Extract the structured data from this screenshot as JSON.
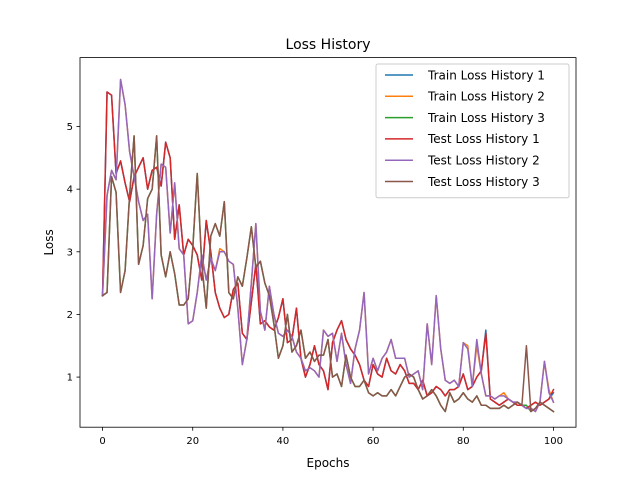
{
  "chart_data": {
    "type": "line",
    "title": "Loss History",
    "xlabel": "Epochs",
    "ylabel": "Loss",
    "xlim": [
      -5,
      105
    ],
    "ylim": [
      0.2,
      6.1
    ],
    "xticks": [
      0,
      20,
      40,
      60,
      80,
      100
    ],
    "yticks": [
      1,
      2,
      3,
      4,
      5
    ],
    "grid": false,
    "legend_position": "top-right",
    "x": [
      0,
      1,
      2,
      3,
      4,
      5,
      6,
      7,
      8,
      9,
      10,
      11,
      12,
      13,
      14,
      15,
      16,
      17,
      18,
      19,
      20,
      21,
      22,
      23,
      24,
      25,
      26,
      27,
      28,
      29,
      30,
      31,
      32,
      33,
      34,
      35,
      36,
      37,
      38,
      39,
      40,
      41,
      42,
      43,
      44,
      45,
      46,
      47,
      48,
      49,
      50,
      51,
      52,
      53,
      54,
      55,
      56,
      57,
      58,
      59,
      60,
      61,
      62,
      63,
      64,
      65,
      66,
      67,
      68,
      69,
      70,
      71,
      72,
      73,
      74,
      75,
      76,
      77,
      78,
      79,
      80,
      81,
      82,
      83,
      84,
      85,
      86,
      87,
      88,
      89,
      90,
      91,
      92,
      93,
      94,
      95,
      96,
      97,
      98,
      99,
      100
    ],
    "series": [
      {
        "name": "Train Loss History 1",
        "color": "#1f77b4",
        "values": [
          2.3,
          5.55,
          5.5,
          4.25,
          4.45,
          4.1,
          3.8,
          4.2,
          4.35,
          4.5,
          4.0,
          4.3,
          4.35,
          4.05,
          4.75,
          4.5,
          3.2,
          3.75,
          2.95,
          3.2,
          3.1,
          2.95,
          2.55,
          3.5,
          3.0,
          2.35,
          2.1,
          1.95,
          2.0,
          2.4,
          2.5,
          1.7,
          1.6,
          2.2,
          2.8,
          1.85,
          1.9,
          1.8,
          1.75,
          1.95,
          2.25,
          1.55,
          1.6,
          2.1,
          1.3,
          1.0,
          1.2,
          1.5,
          1.2,
          1.1,
          0.8,
          1.55,
          1.75,
          1.9,
          1.6,
          1.45,
          1.35,
          1.2,
          0.95,
          0.85,
          1.2,
          1.05,
          1.0,
          1.3,
          1.1,
          1.05,
          1.2,
          1.1,
          0.9,
          0.9,
          0.8,
          0.95,
          0.7,
          0.75,
          0.85,
          0.8,
          0.7,
          0.8,
          0.8,
          0.85,
          1.05,
          0.8,
          0.85,
          1.0,
          1.1,
          1.75,
          0.65,
          0.6,
          0.55,
          0.6,
          0.65,
          0.6,
          0.55,
          0.55,
          0.5,
          0.55,
          0.6,
          0.55,
          0.6,
          0.65,
          0.75
        ]
      },
      {
        "name": "Train Loss History 2",
        "color": "#ff7f0e",
        "values": [
          2.3,
          3.9,
          4.3,
          4.15,
          5.75,
          5.35,
          4.6,
          4.2,
          3.8,
          3.5,
          3.6,
          2.25,
          3.6,
          4.4,
          4.35,
          3.3,
          4.1,
          3.05,
          2.95,
          1.85,
          1.9,
          2.35,
          2.95,
          2.55,
          2.9,
          2.7,
          3.05,
          3.0,
          2.85,
          2.8,
          2.1,
          1.2,
          1.6,
          2.5,
          3.45,
          2.05,
          1.75,
          2.45,
          2.0,
          1.7,
          1.65,
          1.75,
          1.65,
          1.4,
          1.3,
          1.1,
          1.15,
          1.1,
          1.0,
          1.75,
          1.65,
          1.7,
          1.25,
          1.7,
          1.2,
          0.9,
          1.45,
          1.75,
          2.35,
          1.05,
          1.3,
          1.1,
          1.3,
          1.4,
          1.6,
          1.3,
          1.3,
          1.3,
          1.0,
          1.05,
          1.1,
          0.8,
          1.85,
          1.2,
          2.3,
          1.45,
          0.95,
          0.9,
          0.95,
          0.85,
          1.55,
          1.5,
          0.85,
          1.5,
          1.05,
          0.7,
          0.7,
          0.65,
          0.7,
          0.75,
          0.65,
          0.6,
          0.6,
          0.55,
          0.5,
          0.5,
          0.45,
          0.6,
          1.25,
          0.8,
          0.6
        ]
      },
      {
        "name": "Train Loss History 3",
        "color": "#2ca02c",
        "values": [
          2.3,
          2.35,
          4.2,
          3.95,
          2.35,
          2.7,
          3.9,
          4.85,
          2.8,
          3.1,
          3.85,
          4.0,
          4.85,
          2.95,
          2.6,
          3.0,
          2.65,
          2.15,
          2.15,
          2.25,
          3.05,
          4.25,
          2.8,
          2.1,
          3.25,
          3.45,
          3.25,
          3.8,
          2.35,
          2.25,
          2.6,
          2.45,
          2.9,
          3.4,
          2.75,
          2.85,
          2.5,
          2.3,
          1.85,
          1.3,
          1.5,
          2.0,
          1.4,
          1.5,
          1.75,
          1.3,
          1.4,
          1.25,
          1.35,
          1.35,
          1.6,
          1.0,
          1.05,
          0.85,
          1.35,
          1.0,
          0.85,
          0.85,
          0.95,
          0.75,
          0.7,
          0.75,
          0.7,
          0.7,
          0.8,
          0.7,
          0.85,
          1.0,
          1.05,
          1.0,
          0.8,
          0.65,
          0.7,
          0.8,
          0.7,
          0.55,
          0.45,
          0.75,
          0.6,
          0.65,
          0.75,
          0.65,
          0.6,
          0.7,
          0.55,
          0.55,
          0.5,
          0.5,
          0.5,
          0.55,
          0.5,
          0.55,
          0.6,
          0.55,
          0.55,
          0.45,
          0.5,
          0.6,
          0.55,
          0.5,
          0.45
        ]
      },
      {
        "name": "Test Loss History 1",
        "color": "#d62728",
        "values": [
          2.3,
          5.55,
          5.5,
          4.25,
          4.45,
          4.1,
          3.8,
          4.2,
          4.35,
          4.5,
          4.0,
          4.3,
          4.35,
          4.05,
          4.75,
          4.5,
          3.2,
          3.75,
          2.95,
          3.2,
          3.1,
          2.95,
          2.55,
          3.5,
          3.0,
          2.35,
          2.1,
          1.95,
          2.0,
          2.4,
          2.5,
          1.7,
          1.6,
          2.2,
          2.8,
          1.85,
          1.9,
          1.8,
          1.75,
          1.95,
          2.25,
          1.55,
          1.6,
          2.1,
          1.3,
          1.0,
          1.2,
          1.5,
          1.2,
          1.1,
          0.8,
          1.55,
          1.75,
          1.9,
          1.6,
          1.45,
          1.35,
          1.2,
          0.95,
          0.85,
          1.2,
          1.05,
          1.0,
          1.3,
          1.1,
          1.05,
          1.2,
          1.1,
          0.9,
          0.9,
          0.8,
          0.95,
          0.7,
          0.75,
          0.85,
          0.8,
          0.7,
          0.8,
          0.8,
          0.85,
          1.05,
          0.8,
          0.85,
          1.0,
          1.1,
          1.7,
          0.65,
          0.6,
          0.55,
          0.6,
          0.65,
          0.6,
          0.55,
          0.55,
          0.5,
          0.55,
          0.6,
          0.55,
          0.6,
          0.65,
          0.8
        ]
      },
      {
        "name": "Test Loss History 2",
        "color": "#9467bd",
        "values": [
          2.3,
          3.9,
          4.3,
          4.15,
          5.75,
          5.35,
          4.6,
          4.2,
          3.8,
          3.5,
          3.6,
          2.25,
          3.6,
          4.4,
          4.35,
          3.3,
          4.1,
          3.05,
          2.95,
          1.85,
          1.9,
          2.35,
          2.95,
          2.55,
          2.9,
          2.7,
          3.0,
          3.0,
          2.85,
          2.8,
          2.1,
          1.2,
          1.6,
          2.5,
          3.45,
          2.05,
          1.75,
          2.45,
          2.0,
          1.7,
          1.65,
          1.75,
          1.65,
          1.4,
          1.3,
          1.1,
          1.15,
          1.1,
          1.0,
          1.75,
          1.65,
          1.7,
          1.25,
          1.7,
          1.2,
          0.9,
          1.45,
          1.75,
          2.35,
          1.05,
          1.3,
          1.1,
          1.3,
          1.4,
          1.6,
          1.3,
          1.3,
          1.3,
          1.0,
          1.05,
          1.1,
          0.8,
          1.85,
          1.2,
          2.3,
          1.45,
          0.95,
          0.9,
          0.95,
          0.85,
          1.55,
          1.45,
          0.85,
          1.6,
          1.05,
          0.7,
          0.7,
          0.65,
          0.7,
          0.7,
          0.65,
          0.6,
          0.6,
          0.55,
          0.5,
          0.5,
          0.45,
          0.6,
          1.25,
          0.75,
          0.6
        ]
      },
      {
        "name": "Test Loss History 3",
        "color": "#8c564b",
        "values": [
          2.3,
          2.35,
          4.2,
          3.95,
          2.35,
          2.7,
          3.9,
          4.85,
          2.8,
          3.1,
          3.85,
          4.0,
          4.85,
          2.95,
          2.6,
          3.0,
          2.65,
          2.15,
          2.15,
          2.25,
          3.05,
          4.25,
          2.8,
          2.1,
          3.25,
          3.45,
          3.25,
          3.8,
          2.35,
          2.25,
          2.6,
          2.45,
          2.9,
          3.4,
          2.75,
          2.85,
          2.5,
          2.3,
          1.85,
          1.3,
          1.5,
          2.0,
          1.4,
          1.5,
          1.75,
          1.3,
          1.4,
          1.25,
          1.35,
          1.35,
          1.6,
          1.0,
          1.05,
          0.85,
          1.35,
          1.0,
          0.85,
          0.85,
          0.95,
          0.75,
          0.7,
          0.75,
          0.7,
          0.7,
          0.8,
          0.7,
          0.85,
          1.0,
          1.05,
          1.0,
          0.8,
          0.65,
          0.7,
          0.8,
          0.7,
          0.55,
          0.45,
          0.75,
          0.6,
          0.65,
          0.75,
          0.65,
          0.6,
          0.7,
          0.55,
          0.55,
          0.5,
          0.5,
          0.5,
          0.55,
          0.5,
          0.55,
          0.6,
          0.55,
          1.5,
          0.45,
          0.5,
          0.6,
          0.55,
          0.5,
          0.45
        ]
      }
    ]
  }
}
